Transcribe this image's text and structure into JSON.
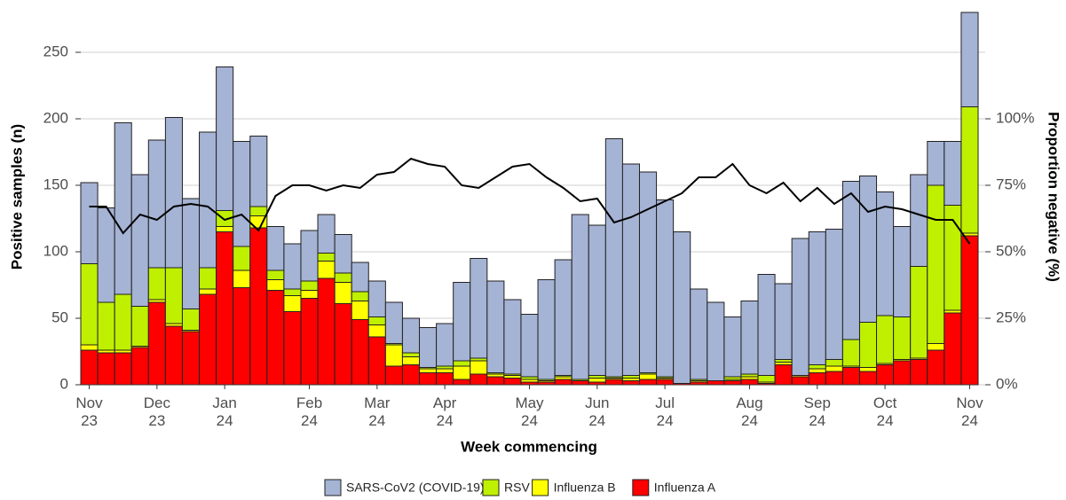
{
  "chart_data": {
    "type": "bar",
    "x_label": "Week commencing",
    "y_label": "Positive samples (n)",
    "y2_label": "Proportion negative (%)",
    "stacked": true,
    "categories": [
      "Nov 23",
      null,
      null,
      null,
      "Dec 23",
      null,
      null,
      null,
      "Jan 24",
      null,
      null,
      null,
      null,
      "Feb 24",
      null,
      null,
      null,
      "Mar 24",
      null,
      null,
      null,
      "Apr 24",
      null,
      null,
      null,
      null,
      "May 24",
      null,
      null,
      null,
      "Jun 24",
      null,
      null,
      null,
      "Jul 24",
      null,
      null,
      null,
      null,
      "Aug 24",
      null,
      null,
      null,
      "Sep 24",
      null,
      null,
      null,
      "Oct 24",
      null,
      null,
      null,
      null,
      "Nov 24"
    ],
    "series": [
      {
        "name": "SARS-CoV2 (COVID-19)",
        "color": "#a5b3d4",
        "values": [
          61,
          71,
          129,
          99,
          96,
          113,
          83,
          102,
          108,
          79,
          53,
          33,
          34,
          38,
          29,
          29,
          22,
          27,
          31,
          26,
          30,
          32,
          59,
          75,
          69,
          56,
          47,
          75,
          87,
          124,
          113,
          179,
          159,
          151,
          133,
          114,
          68,
          59,
          45,
          55,
          76,
          57,
          103,
          100,
          98,
          119,
          110,
          93,
          68,
          69,
          33,
          48,
          71
        ]
      },
      {
        "name": "RSV",
        "color": "#bff000",
        "values": [
          61,
          36,
          42,
          30,
          24,
          42,
          16,
          16,
          12,
          18,
          7,
          7,
          5,
          7,
          6,
          7,
          7,
          6,
          1,
          3,
          1,
          2,
          4,
          2,
          1,
          1,
          2,
          1,
          1,
          1,
          2,
          1,
          2,
          1,
          1,
          0,
          1,
          0,
          2,
          2,
          5,
          2,
          0,
          3,
          5,
          20,
          34,
          36,
          32,
          69,
          119,
          79,
          95
        ]
      },
      {
        "name": "Influenza B",
        "color": "#ffff00",
        "values": [
          4,
          2,
          2,
          1,
          2,
          2,
          1,
          4,
          4,
          13,
          9,
          8,
          12,
          6,
          13,
          16,
          14,
          9,
          16,
          6,
          3,
          3,
          10,
          10,
          2,
          2,
          2,
          1,
          2,
          0,
          3,
          1,
          2,
          4,
          1,
          0,
          1,
          0,
          1,
          2,
          1,
          2,
          1,
          3,
          4,
          1,
          3,
          1,
          1,
          1,
          5,
          2,
          2
        ]
      },
      {
        "name": "Influenza A",
        "color": "#ff0000",
        "values": [
          26,
          24,
          24,
          28,
          62,
          44,
          40,
          68,
          115,
          73,
          118,
          71,
          55,
          65,
          80,
          61,
          49,
          36,
          14,
          15,
          9,
          9,
          4,
          8,
          6,
          5,
          2,
          2,
          4,
          3,
          2,
          4,
          3,
          4,
          4,
          1,
          2,
          3,
          3,
          4,
          1,
          15,
          6,
          9,
          10,
          13,
          10,
          15,
          18,
          19,
          26,
          54,
          112
        ]
      },
      {
        "name": "Proportion negative",
        "type": "line",
        "axis": "y2",
        "color": "#000000",
        "values": [
          67,
          67,
          57,
          64,
          62,
          67,
          68,
          67,
          62,
          64,
          58,
          71,
          75,
          75,
          73,
          75,
          74,
          79,
          80,
          85,
          83,
          82,
          75,
          74,
          78,
          82,
          83,
          78,
          74,
          69,
          70,
          61,
          63,
          66,
          69,
          72,
          78,
          78,
          83,
          75,
          72,
          76,
          69,
          74,
          68,
          72,
          65,
          67,
          66,
          64,
          62,
          62,
          53
        ]
      }
    ],
    "ylim": [
      0,
      283
    ],
    "yticks": [
      0,
      50,
      100,
      150,
      200,
      250
    ],
    "y2lim": [
      0,
      141.5
    ],
    "y2ticks": [
      {
        "value": 0,
        "label": "0%"
      },
      {
        "value": 25,
        "label": "25%"
      },
      {
        "value": 50,
        "label": "50%"
      },
      {
        "value": 75,
        "label": "75%"
      },
      {
        "value": 100,
        "label": "100%"
      }
    ],
    "grid": true,
    "legend": "bottom"
  }
}
